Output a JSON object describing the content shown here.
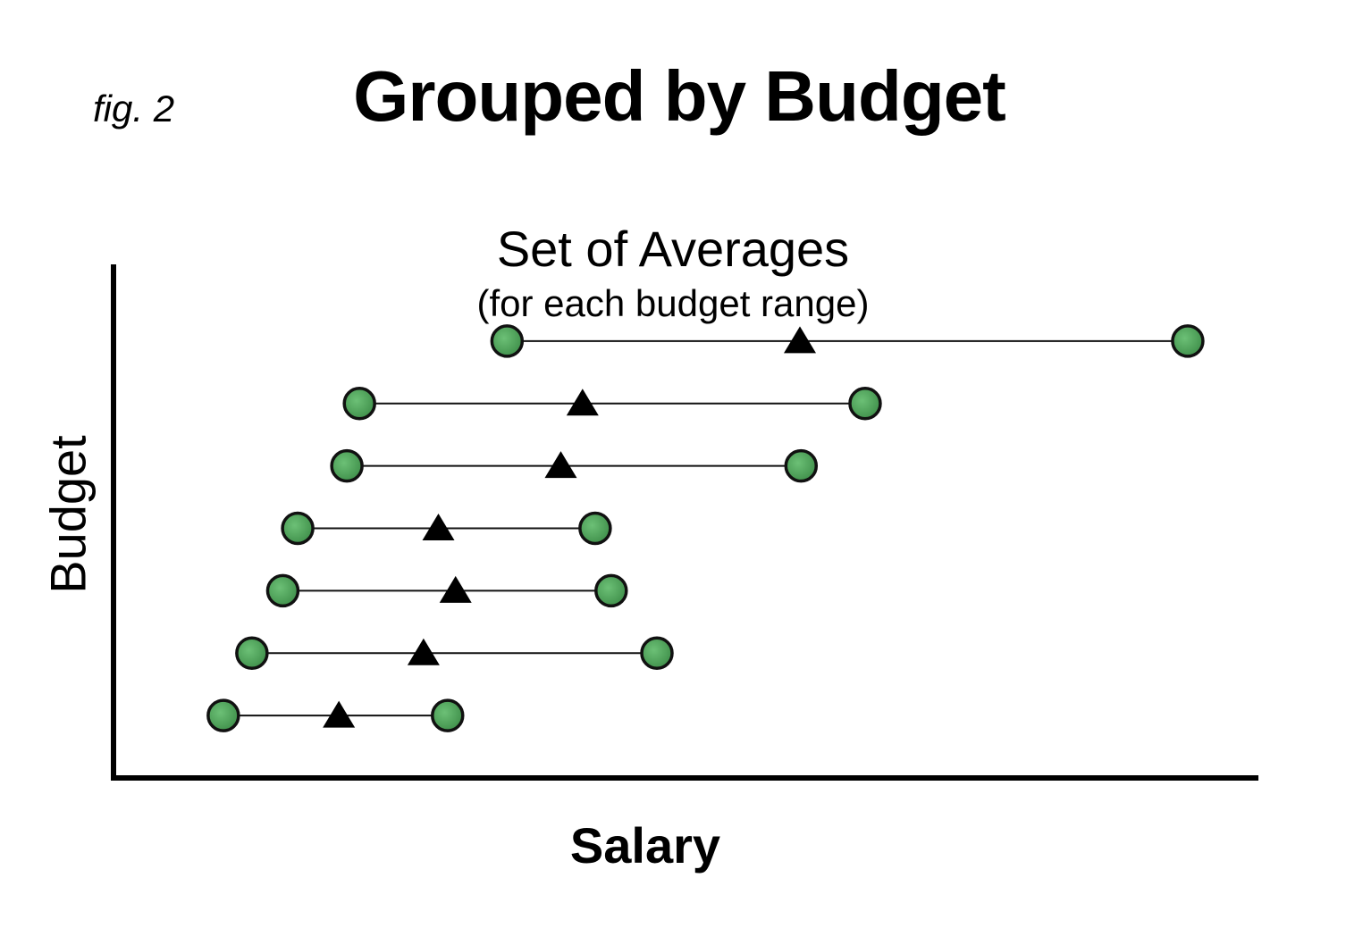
{
  "header": {
    "fig_label": "fig. 2",
    "title": "Grouped by Budget"
  },
  "chart_data": {
    "type": "scatter",
    "title": "Set of Averages",
    "subtitle": "(for each budget range)",
    "xlabel": "Salary",
    "ylabel": "Budget",
    "ticks_shown": false,
    "grid": false,
    "xlim": [
      0,
      100
    ],
    "ylim": [
      0,
      8
    ],
    "ranges": [
      {
        "budget": 1,
        "min": 9.6,
        "avg": 19.7,
        "max": 29.2
      },
      {
        "budget": 2,
        "min": 12.1,
        "avg": 27.1,
        "max": 47.5
      },
      {
        "budget": 3,
        "min": 14.8,
        "avg": 29.9,
        "max": 43.5
      },
      {
        "budget": 4,
        "min": 16.1,
        "avg": 28.4,
        "max": 42.1
      },
      {
        "budget": 5,
        "min": 20.4,
        "avg": 39.1,
        "max": 60.1
      },
      {
        "budget": 6,
        "min": 21.5,
        "avg": 41.0,
        "max": 65.7
      },
      {
        "budget": 7,
        "min": 34.4,
        "avg": 60.0,
        "max": 93.9
      }
    ],
    "colors": {
      "endpoint_fill": "#4fa35a",
      "endpoint_stroke": "#111111",
      "average_marker": "#000000",
      "axis": "#000000"
    }
  }
}
